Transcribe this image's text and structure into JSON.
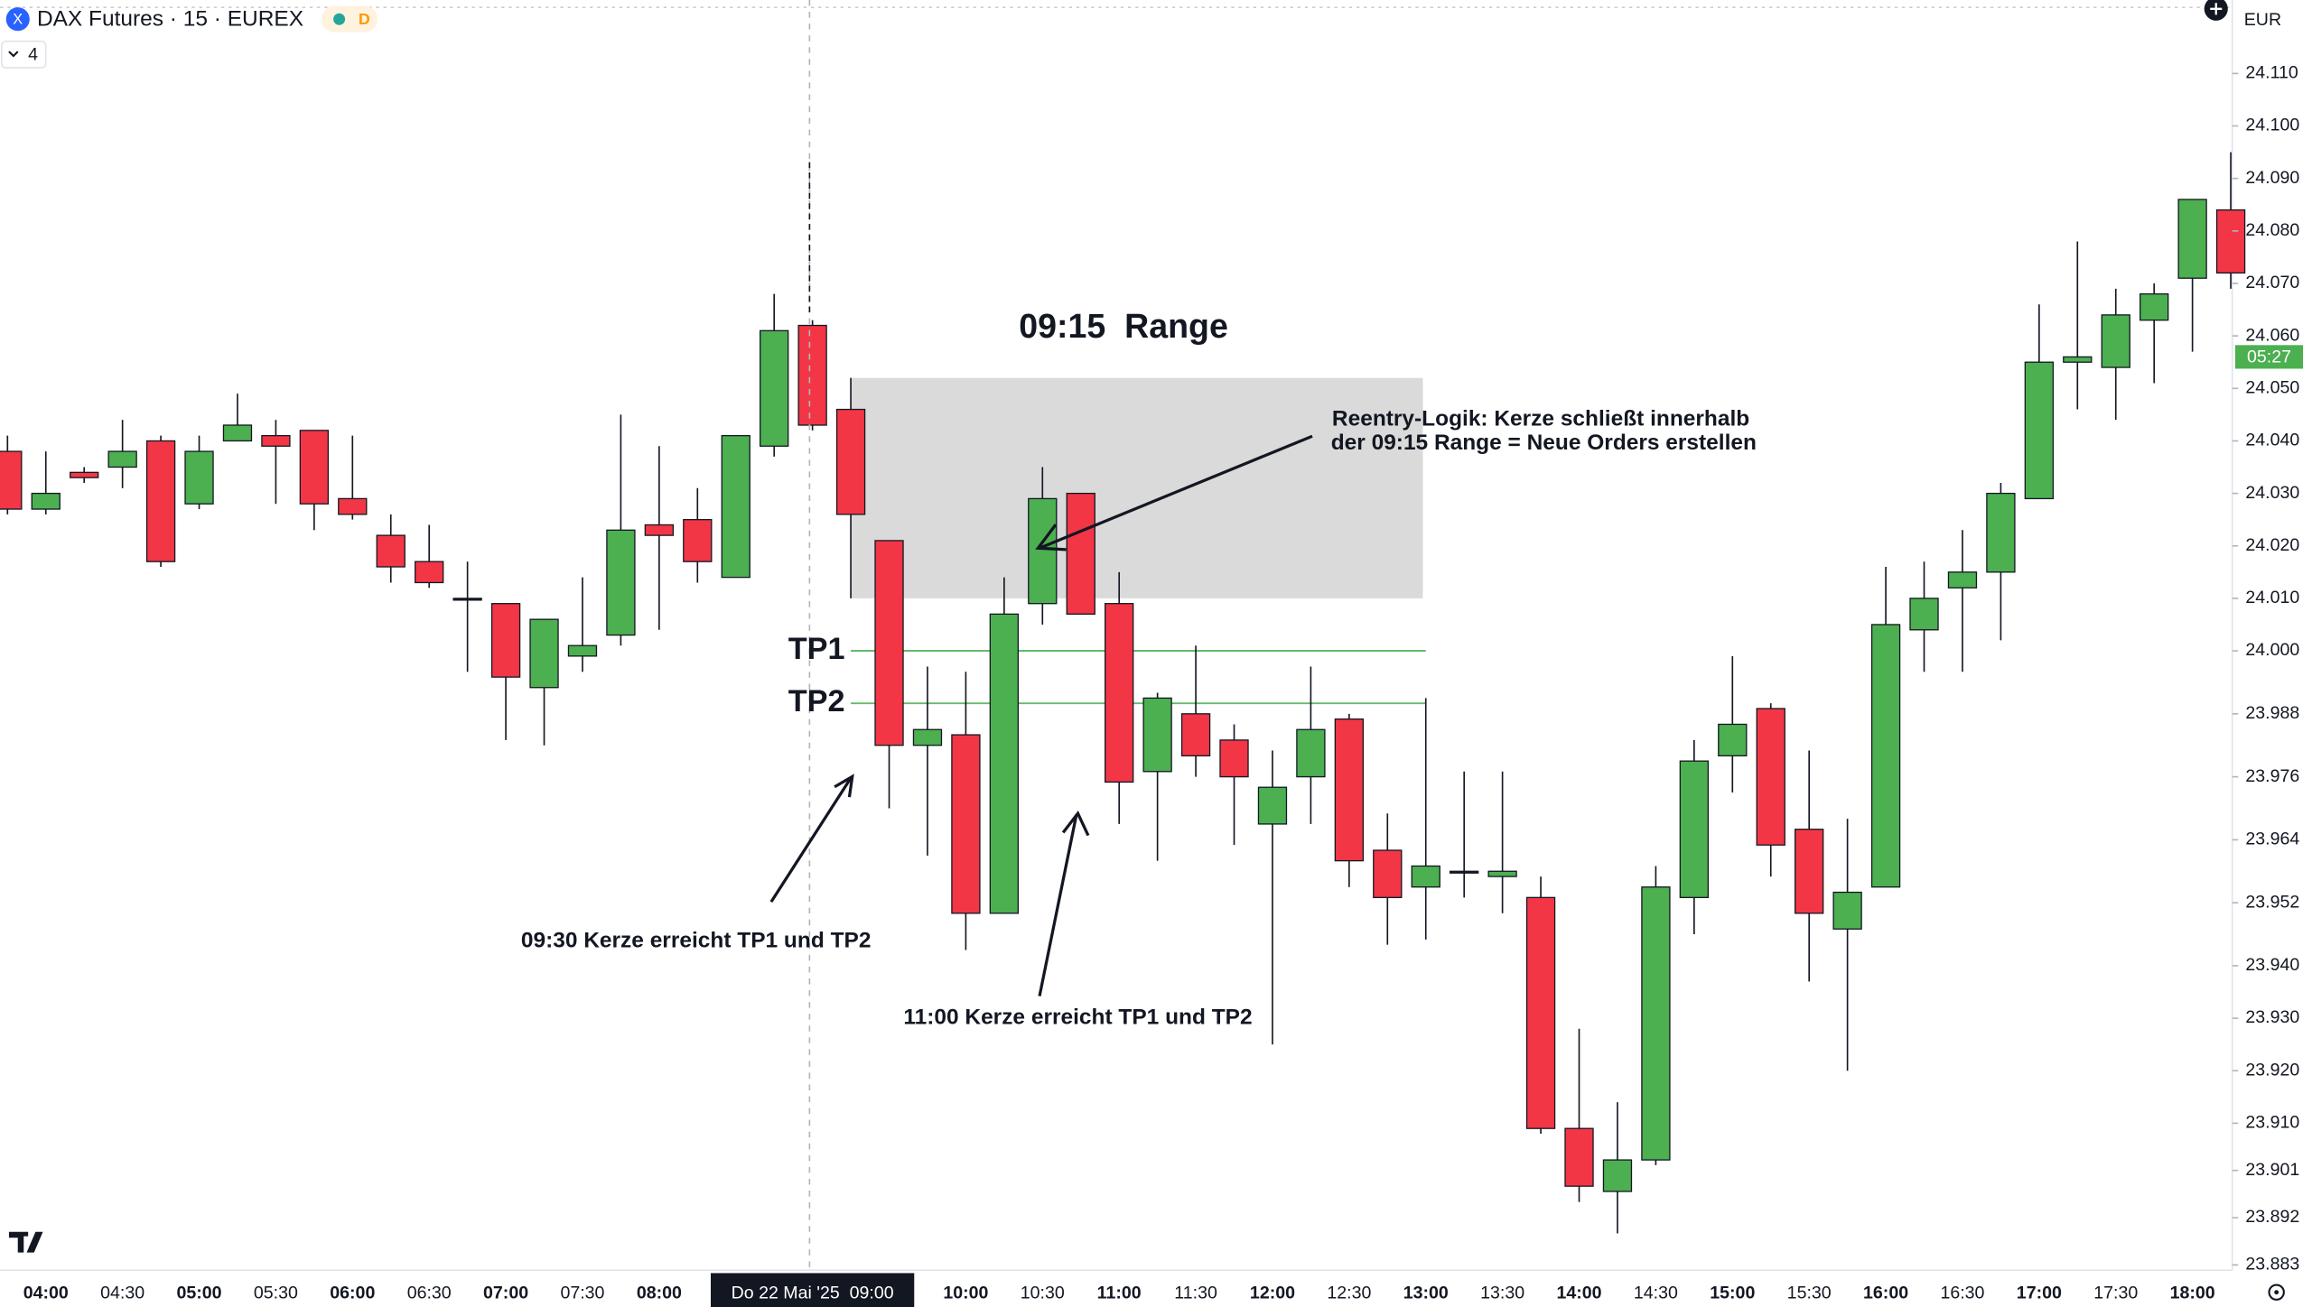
{
  "chart_data": {
    "type": "candlestick",
    "title": "DAX Futures · 15 · EUREX",
    "interval_badge": "D",
    "indicator_count": "4",
    "currency": "EUR",
    "countdown": {
      "value": 24056,
      "label": "05:27"
    },
    "categories": [
      null,
      "04:00",
      null,
      "04:30",
      null,
      "05:00",
      null,
      "05:30",
      null,
      "06:00",
      null,
      "06:30",
      null,
      "07:00",
      null,
      "07:30",
      null,
      "08:00",
      null,
      null,
      null,
      "Do 22 Mai '25  09:00",
      null,
      null,
      null,
      "10:00",
      null,
      "10:30",
      null,
      "11:00",
      null,
      "11:30",
      null,
      "12:00",
      null,
      "12:30",
      null,
      "13:00",
      null,
      "13:30",
      null,
      "14:00",
      null,
      "14:30",
      null,
      "15:00",
      null,
      "15:30",
      null,
      "16:00",
      null,
      "16:30",
      null,
      "17:00",
      null,
      "17:30",
      null,
      "18:00",
      null
    ],
    "series": [
      {
        "open": [
          24038,
          24027,
          24034,
          24035,
          24040,
          24028,
          24040,
          24041,
          24042,
          24029,
          24022,
          24017,
          24010,
          24009,
          23993,
          23999,
          24003,
          24024,
          24025,
          24014,
          24039,
          24062,
          24046,
          24021,
          23982,
          23984,
          23950,
          24009,
          24030,
          24009,
          23977,
          23988,
          23983,
          23967,
          23976,
          23987,
          23962,
          23955,
          23958,
          23957,
          23953,
          23909,
          23897,
          23903,
          23953,
          23980,
          23989,
          23966,
          23947,
          23955,
          24004,
          24012,
          24015,
          24029,
          24055,
          24054,
          24063,
          24071,
          24084
        ],
        "high": [
          24041,
          24038,
          24035,
          24044,
          24041,
          24041,
          24049,
          24044,
          24042,
          24041,
          24026,
          24024,
          24017,
          24009,
          24006,
          24014,
          24045,
          24039,
          24031,
          24041,
          24068,
          24063,
          24052,
          24021,
          23997,
          23996,
          24014,
          24035,
          24030,
          24015,
          23992,
          24001,
          23986,
          23981,
          23997,
          23988,
          23969,
          23991,
          23977,
          23977,
          23957,
          23928,
          23914,
          23959,
          23983,
          23999,
          23990,
          23981,
          23968,
          24016,
          24017,
          24023,
          24032,
          24066,
          24078,
          24069,
          24070,
          24086,
          24095
        ],
        "low": [
          24026,
          24026,
          24032,
          24031,
          24016,
          24027,
          24040,
          24028,
          24023,
          24025,
          24013,
          24012,
          23996,
          23983,
          23982,
          23996,
          24001,
          24004,
          24013,
          24014,
          24037,
          24042,
          24010,
          23970,
          23961,
          23943,
          23950,
          24005,
          24007,
          23967,
          23960,
          23976,
          23963,
          23925,
          23967,
          23955,
          23944,
          23945,
          23953,
          23950,
          23908,
          23895,
          23889,
          23902,
          23946,
          23973,
          23957,
          23937,
          23920,
          23955,
          23996,
          23996,
          24002,
          24029,
          24046,
          24044,
          24051,
          24057,
          24069
        ],
        "close": [
          24027,
          24030,
          24033,
          24038,
          24017,
          24038,
          24043,
          24039,
          24028,
          24026,
          24016,
          24013,
          24010,
          23995,
          24006,
          24001,
          24023,
          24022,
          24017,
          24041,
          24061,
          24043,
          24026,
          23982,
          23985,
          23950,
          24007,
          24029,
          24007,
          23975,
          23991,
          23980,
          23976,
          23974,
          23985,
          23960,
          23953,
          23959,
          23958,
          23958,
          23909,
          23898,
          23903,
          23955,
          23979,
          23986,
          23963,
          23950,
          23954,
          24005,
          24010,
          24015,
          24030,
          24055,
          24056,
          24064,
          24068,
          24086,
          24072
        ]
      }
    ],
    "up_color": "#4caf50",
    "down_color": "#f23645",
    "ylim": [
      23882,
      24124
    ],
    "yticks": [
      {
        "value": 24110,
        "label": "24.110"
      },
      {
        "value": 24100,
        "label": "24.100"
      },
      {
        "value": 24090,
        "label": "24.090"
      },
      {
        "value": 24080,
        "label": "24.080"
      },
      {
        "value": 24070,
        "label": "24.070"
      },
      {
        "value": 24060,
        "label": "24.060"
      },
      {
        "value": 24050,
        "label": "24.050"
      },
      {
        "value": 24040,
        "label": "24.040"
      },
      {
        "value": 24030,
        "label": "24.030"
      },
      {
        "value": 24020,
        "label": "24.020"
      },
      {
        "value": 24010,
        "label": "24.010"
      },
      {
        "value": 24000,
        "label": "24.000"
      },
      {
        "value": 23988,
        "label": "23.988"
      },
      {
        "value": 23976,
        "label": "23.976"
      },
      {
        "value": 23964,
        "label": "23.964"
      },
      {
        "value": 23952,
        "label": "23.952"
      },
      {
        "value": 23940,
        "label": "23.940"
      },
      {
        "value": 23930,
        "label": "23.930"
      },
      {
        "value": 23920,
        "label": "23.920"
      },
      {
        "value": 23910,
        "label": "23.910"
      },
      {
        "value": 23901,
        "label": "23.901"
      },
      {
        "value": 23892,
        "label": "23.892"
      },
      {
        "value": 23883,
        "label": "23.883"
      }
    ],
    "grid": false,
    "annotations": {
      "range": {
        "label": "09:15  Range",
        "high": 24052,
        "low": 24010
      },
      "tp_lines": [
        {
          "label": "TP1",
          "value": 24000
        },
        {
          "label": "TP2",
          "value": 23990
        }
      ],
      "notes": [
        "Reentry-Logik: Kerze schließt innerhalb",
        "der 09:15 Range = Neue Orders erstellen",
        "09:30 Kerze erreicht TP1 und TP2",
        "11:00 Kerze erreicht TP1 und TP2"
      ]
    }
  }
}
